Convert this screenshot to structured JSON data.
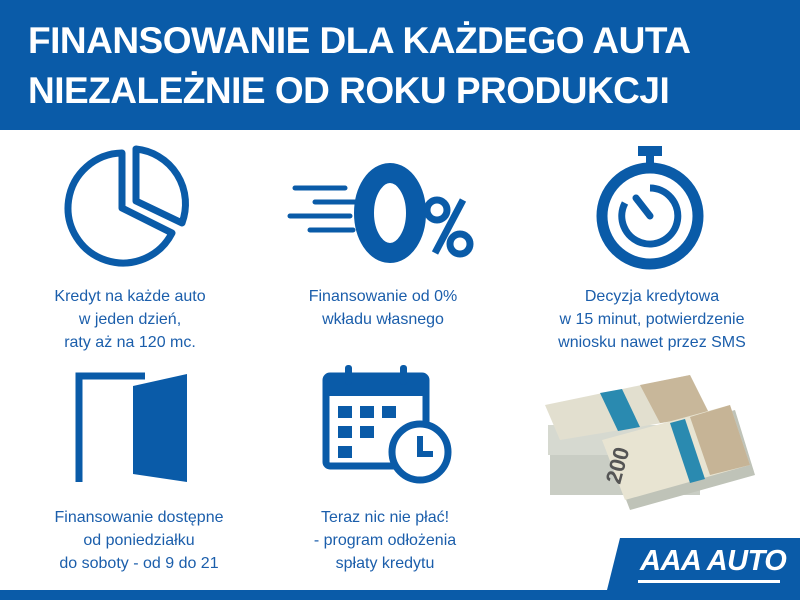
{
  "header": {
    "line1": "FINANSOWANIE DLA KAŻDEGO AUTA",
    "line2": "NIEZALEŻNIE OD ROKU PRODUKCJI"
  },
  "features": [
    {
      "icon": "pie-chart-icon",
      "lines": [
        "Kredyt na każde auto",
        "w jeden dzień,",
        "raty aż na 120 mc."
      ]
    },
    {
      "icon": "zero-percent-icon",
      "icon_text": "0%",
      "lines": [
        "Finansowanie od 0%",
        "wkładu własnego"
      ]
    },
    {
      "icon": "stopwatch-icon",
      "lines": [
        "Decyzja kredytowa",
        "w 15 minut, potwierdzenie",
        "wniosku nawet przez SMS"
      ]
    },
    {
      "icon": "door-icon",
      "lines": [
        "Finansowanie dostępne",
        "od poniedziałku",
        "do soboty - od 9 do 21"
      ]
    },
    {
      "icon": "calendar-clock-icon",
      "lines": [
        "Teraz nic nie płać!",
        "- program odłożenia",
        "spłaty kredytu"
      ]
    }
  ],
  "image": {
    "banknote_value": "200"
  },
  "logo": {
    "text": "AAA AUTO"
  },
  "colors": {
    "brand_blue": "#0a5ba8",
    "text_blue": "#1b5eab"
  }
}
